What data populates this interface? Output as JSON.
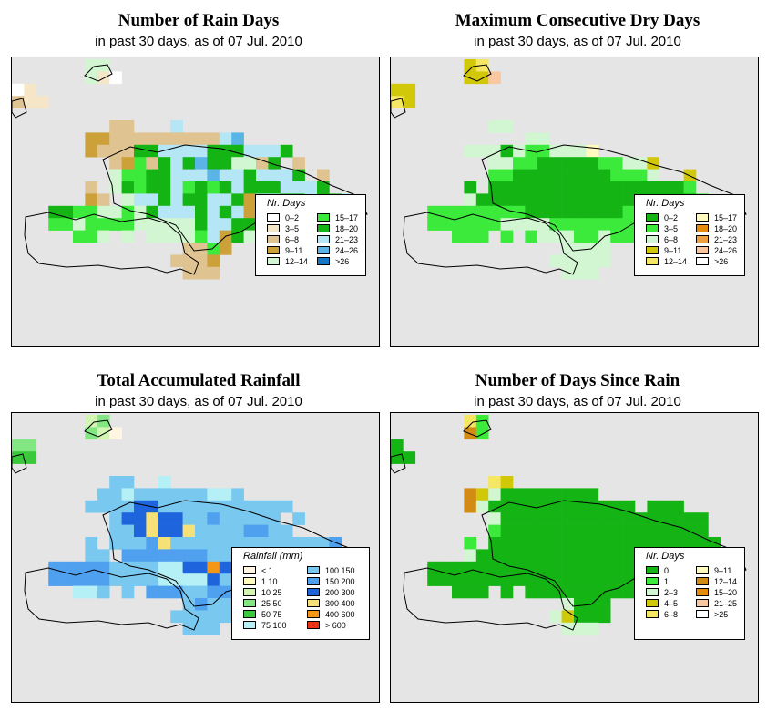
{
  "panels": [
    {
      "key": "p1",
      "title": "Number of Rain Days",
      "subtitle": "in past 30 days, as of  07 Jul. 2010"
    },
    {
      "key": "p2",
      "title": "Maximum Consecutive Dry Days",
      "subtitle": "in past 30 days, as of  07 Jul. 2010"
    },
    {
      "key": "p3",
      "title": "Total Accumulated Rainfall",
      "subtitle": "in past 30 days, as of  07 Jul. 2010"
    },
    {
      "key": "p4",
      "title": "Number of Days Since Rain",
      "subtitle": "in past 30 days, as of  07 Jul. 2010"
    }
  ],
  "legends": {
    "p1": {
      "title": "Nr. Days",
      "items": [
        {
          "label": "0–2",
          "color": "#ffffff"
        },
        {
          "label": "3–5",
          "color": "#f5e6c8"
        },
        {
          "label": "6–8",
          "color": "#dfc390"
        },
        {
          "label": "9–11",
          "color": "#cda13a"
        },
        {
          "label": "12–14",
          "color": "#d2f5d2"
        },
        {
          "label": "15–17",
          "color": "#3cea3c"
        },
        {
          "label": "18–20",
          "color": "#14b414"
        },
        {
          "label": "21–23",
          "color": "#b4e6f5"
        },
        {
          "label": "24–26",
          "color": "#5ab4e6"
        },
        {
          "label": ">26",
          "color": "#1478c8"
        }
      ]
    },
    "p2": {
      "title": "Nr. Days",
      "items": [
        {
          "label": "0–2",
          "color": "#14b414"
        },
        {
          "label": "3–5",
          "color": "#3cea3c"
        },
        {
          "label": "6–8",
          "color": "#d2f5d2"
        },
        {
          "label": "9–11",
          "color": "#d2c80a"
        },
        {
          "label": "12–14",
          "color": "#f5e664"
        },
        {
          "label": "15–17",
          "color": "#fffabe"
        },
        {
          "label": "18–20",
          "color": "#e68c0a"
        },
        {
          "label": "21–23",
          "color": "#f0a03c"
        },
        {
          "label": "24–26",
          "color": "#fac8a0"
        },
        {
          "label": ">26",
          "color": "#ffffff"
        }
      ]
    },
    "p3": {
      "title": "Rainfall (mm)",
      "items": [
        {
          "label": "< 1",
          "color": "#fff5e1"
        },
        {
          "label": "1   10",
          "color": "#fffabe"
        },
        {
          "label": "10   25",
          "color": "#d2f5b4"
        },
        {
          "label": "25   50",
          "color": "#82e682"
        },
        {
          "label": "50   75",
          "color": "#3cc83c"
        },
        {
          "label": "75  100",
          "color": "#b4f0f5"
        },
        {
          "label": "100  150",
          "color": "#78c8f0"
        },
        {
          "label": "150  200",
          "color": "#50a0f0"
        },
        {
          "label": "200  300",
          "color": "#1e64dc"
        },
        {
          "label": "300  400",
          "color": "#f5e178"
        },
        {
          "label": "400  600",
          "color": "#f59614"
        },
        {
          "label": "> 600",
          "color": "#f03214"
        }
      ]
    },
    "p4": {
      "title": "Nr. Days",
      "items": [
        {
          "label": "0",
          "color": "#14b414"
        },
        {
          "label": "1",
          "color": "#3cea3c"
        },
        {
          "label": "2–3",
          "color": "#d2f5d2"
        },
        {
          "label": "4–5",
          "color": "#d2c80a"
        },
        {
          "label": "6–8",
          "color": "#f5e664"
        },
        {
          "label": "9–11",
          "color": "#fffabe"
        },
        {
          "label": "12–14",
          "color": "#d28c14"
        },
        {
          "label": "15–20",
          "color": "#e68c0a"
        },
        {
          "label": "21–25",
          "color": "#fac8a0"
        },
        {
          "label": ">25",
          "color": "#ffffff"
        }
      ]
    }
  },
  "grid_data": {
    "p1": [
      "......55......................",
      "......520.....................",
      "12............................",
      "322...........................",
      "..............................",
      "........33...8................",
      "......4433333333389...........",
      "......43337788887778887.........",
      "........34637879775537.3......",
      "........5667788898878887.3.....",
      "......3.576778676787778887....",
      "......43.5887877887488778778...",
      "...7766556578887878478477678..",
      "...6656666555557887787576776...",
      ".....665.5.55556847563.6..3...",
      "..............3364...........",
      ".............3334.............",
      "..............333............."
    ],
    "p2": [
      "......45......................",
      "......448.....................",
      "44............................",
      "54............................",
      "..............................",
      "........33...................",
      "...........33.................",
      "......33313223336...........",
      "........33221111122334.........",
      "........22111111112223..4......",
      "......1.11111111111111112......",
      "......31111111111111111112.....",
      "...22222222111111112122222....",
      "...22222233332222222123122.....",
      ".....222.2.23332232222.2......",
      "..............3333............",
      ".............33333.............",
      "..............333............."
    ],
    "p3": [
      "......34......................",
      "......431.....................",
      "44............................",
      "55............................",
      "..............................",
      "........77..6.................",
      ".......776777777667.............",
      "......77779977777777777..........",
      "........799J9977877777.7.......",
      "........779J99J77778877.........",
      "......7.7778J77777777777778....",
      "......77.8888888777777777777...",
      "...8888877776699A99777888.8.....",
      "...8888877776666977777J78.......",
      ".....667.7.8887788877.7........",
      "..............78777............",
      ".............77777.............",
      "..............777............."
    ],
    "p4": [
      "......52......................",
      "......B2......................",
      "1.............................",
      "11............................",
      "..............................",
      "........54...................",
      "......B4311111111...........",
      "......B3111111111111.111........",
      "........311111111111111111.....",
      "........211111111111111111......",
      "......2.1111111111111111111....",
      "......31111111111111111111111..",
      "...11111111111111111111111.....",
      "...1111111111111111111111......",
      ".....111.1.11111111111.1.......",
      "..............3111............",
      ".............34111.............",
      "..............333............."
    ]
  },
  "grid_key": {
    "p1": {
      "1": "#ffffff",
      "2": "#f5e6c8",
      "3": "#dfc390",
      "4": "#cda13a",
      "5": "#d2f5d2",
      "6": "#3cea3c",
      "7": "#14b414",
      "8": "#b4e6f5",
      "9": "#5ab4e6",
      "0": "#ffffff"
    },
    "p2": {
      "1": "#14b414",
      "2": "#3cea3c",
      "3": "#d2f5d2",
      "4": "#d2c80a",
      "5": "#f5e664",
      "6": "#fffabe",
      "8": "#fac8a0"
    },
    "p3": {
      "1": "#fff5e1",
      "2": "#fffabe",
      "3": "#d2f5b4",
      "4": "#82e682",
      "5": "#3cc83c",
      "6": "#b4f0f5",
      "7": "#78c8f0",
      "8": "#50a0f0",
      "9": "#1e64dc",
      "J": "#f5e178",
      "A": "#f59614"
    },
    "p4": {
      "1": "#14b414",
      "2": "#3cea3c",
      "3": "#d2f5d2",
      "4": "#d2c80a",
      "5": "#f5e664",
      "B": "#d28c14"
    }
  }
}
